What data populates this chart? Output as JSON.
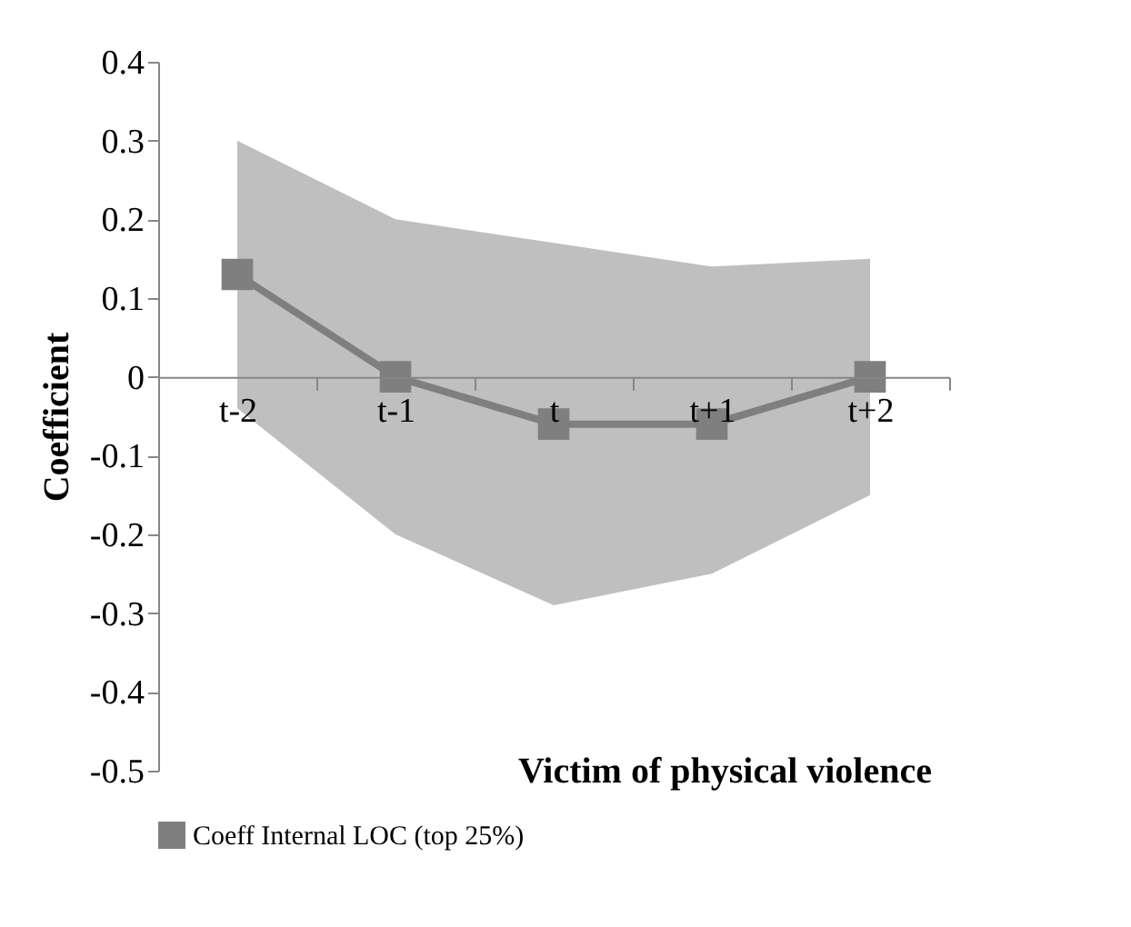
{
  "chart_data": {
    "type": "line",
    "xlabel": "Victim of physical violence",
    "ylabel": "Coefficient",
    "categories": [
      "t-2",
      "t-1",
      "t",
      "t+1",
      "t+2"
    ],
    "series": [
      {
        "name": "Coeff Internal LOC (top 25%)",
        "color": "#7f7f7f",
        "values": [
          0.13,
          0.0,
          -0.06,
          -0.06,
          0.0
        ],
        "lower": [
          -0.04,
          -0.2,
          -0.29,
          -0.25,
          -0.15
        ],
        "upper": [
          0.3,
          0.2,
          0.17,
          0.14,
          0.15
        ]
      }
    ],
    "ylim": [
      -0.5,
      0.4
    ],
    "yticks": [
      0.4,
      0.3,
      0.2,
      0.1,
      0,
      -0.1,
      -0.2,
      -0.3,
      -0.4,
      -0.5
    ],
    "marker": "square",
    "line_style": "solid",
    "grid": false,
    "legend": "bottom"
  }
}
